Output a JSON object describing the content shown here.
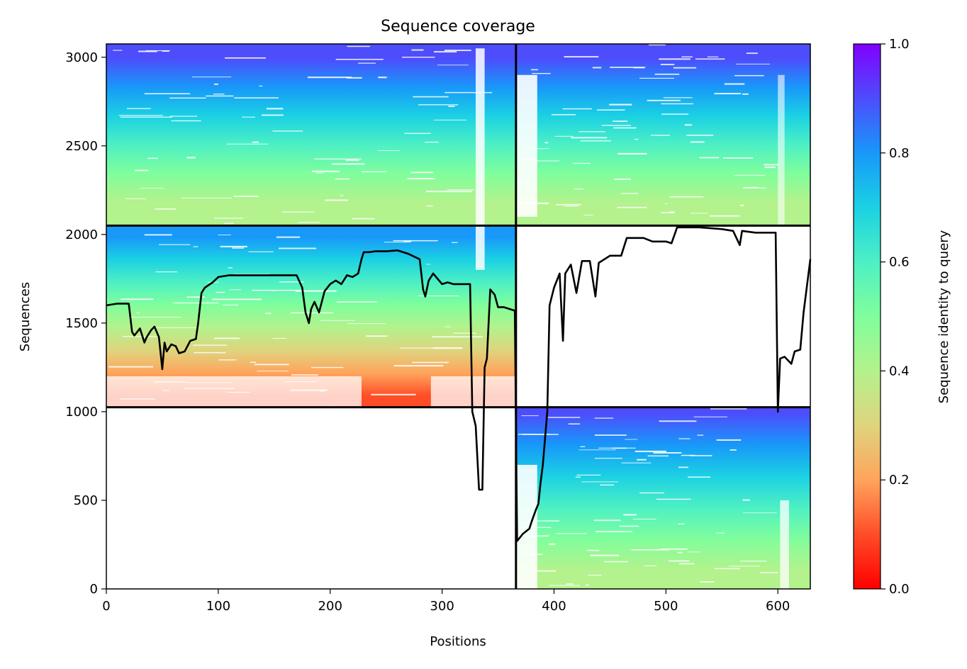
{
  "chart_data": {
    "type": "heatmap",
    "title": "Sequence coverage",
    "xlabel": "Positions",
    "ylabel": "Sequences",
    "xlim": [
      0,
      629
    ],
    "ylim": [
      0,
      3075
    ],
    "x_ticks": [
      0,
      100,
      200,
      300,
      400,
      500,
      600
    ],
    "y_ticks": [
      0,
      500,
      1000,
      1500,
      2000,
      2500,
      3000
    ],
    "grid": false,
    "colorbar": {
      "label": "Sequence identity to query",
      "range": [
        0.0,
        1.0
      ],
      "ticks": [
        0.0,
        0.2,
        0.4,
        0.6,
        0.8,
        1.0
      ],
      "colormap": "rainbow_r"
    },
    "boundaries": {
      "x_split": 366,
      "y_splits": [
        1025,
        2050
      ]
    },
    "blocks": [
      {
        "name": "chain-1-block-upper",
        "x": [
          0,
          366
        ],
        "y": [
          2050,
          3075
        ],
        "identity_bottom": 0.32,
        "identity_top": 0.95
      },
      {
        "name": "chain-1-block-mid",
        "x": [
          0,
          366
        ],
        "y": [
          1025,
          2050
        ],
        "identity_bottom": 0.05,
        "identity_top": 0.85
      },
      {
        "name": "chain-2-block-upper",
        "x": [
          366,
          629
        ],
        "y": [
          2050,
          3075
        ],
        "identity_bottom": 0.32,
        "identity_top": 0.95
      },
      {
        "name": "chain-2-block-low",
        "x": [
          366,
          629
        ],
        "y": [
          0,
          1025
        ],
        "identity_bottom": 0.34,
        "identity_top": 0.92
      }
    ],
    "coverage_line": {
      "x": [
        0,
        10,
        20,
        23,
        25,
        30,
        34,
        36,
        40,
        43,
        47,
        50,
        52,
        54,
        58,
        62,
        65,
        70,
        75,
        80,
        82,
        85,
        88,
        95,
        100,
        110,
        130,
        150,
        170,
        175,
        178,
        181,
        183,
        186,
        190,
        195,
        200,
        205,
        210,
        215,
        220,
        225,
        228,
        230,
        235,
        240,
        250,
        260,
        270,
        280,
        283,
        285,
        288,
        292,
        296,
        300,
        305,
        310,
        318,
        325,
        327,
        330,
        333,
        336,
        338,
        340,
        343,
        347,
        350,
        355,
        360,
        365,
        367,
        372,
        378,
        380,
        384,
        386,
        388,
        390,
        394,
        396,
        400,
        405,
        408,
        410,
        412,
        415,
        420,
        425,
        432,
        437,
        440,
        450,
        460,
        465,
        480,
        488,
        500,
        505,
        510,
        530,
        550,
        560,
        566,
        568,
        580,
        598,
        600,
        602,
        606,
        612,
        615,
        620,
        623,
        629
      ],
      "y": [
        1600,
        1610,
        1610,
        1450,
        1430,
        1470,
        1390,
        1420,
        1460,
        1480,
        1420,
        1240,
        1390,
        1340,
        1380,
        1370,
        1330,
        1340,
        1400,
        1410,
        1500,
        1670,
        1700,
        1730,
        1760,
        1770,
        1770,
        1770,
        1770,
        1700,
        1560,
        1500,
        1580,
        1620,
        1560,
        1680,
        1720,
        1740,
        1720,
        1770,
        1760,
        1780,
        1860,
        1900,
        1900,
        1905,
        1905,
        1910,
        1890,
        1860,
        1690,
        1650,
        1740,
        1780,
        1750,
        1720,
        1730,
        1720,
        1720,
        1720,
        1000,
        920,
        560,
        560,
        1250,
        1300,
        1690,
        1660,
        1590,
        1590,
        1580,
        1570,
        270,
        310,
        340,
        380,
        450,
        480,
        600,
        700,
        1000,
        1600,
        1700,
        1780,
        1400,
        1780,
        1800,
        1830,
        1670,
        1850,
        1850,
        1650,
        1840,
        1880,
        1880,
        1980,
        1980,
        1960,
        1960,
        1950,
        2040,
        2040,
        2030,
        2020,
        1940,
        2020,
        2010,
        2010,
        1000,
        1300,
        1310,
        1270,
        1340,
        1350,
        1560,
        1860
      ]
    }
  }
}
